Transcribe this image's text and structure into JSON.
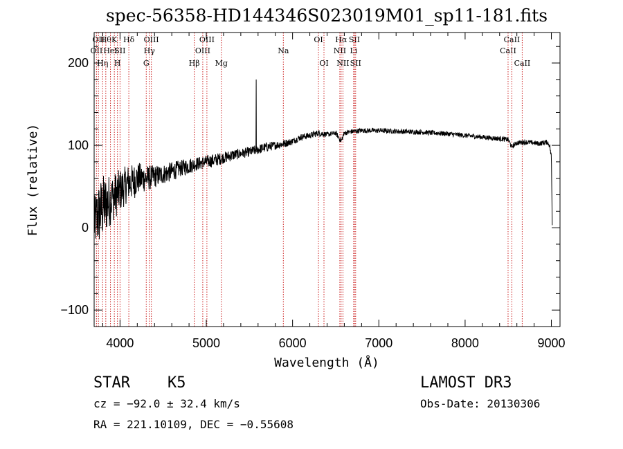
{
  "chart_data": {
    "type": "line",
    "title": "spec-56358-HD144346S023019M01_sp11-181.fits",
    "xlabel": "Wavelength (Å)",
    "ylabel": "Flux (relative)",
    "xlim": [
      3700,
      9100
    ],
    "ylim": [
      -120,
      237
    ],
    "xticks": [
      4000,
      5000,
      6000,
      7000,
      8000,
      9000
    ],
    "yticks": [
      -100,
      0,
      100,
      200
    ],
    "xtick_labels": [
      "4000",
      "5000",
      "6000",
      "7000",
      "8000",
      "9000"
    ],
    "ytick_labels": [
      "−100",
      "0",
      "100",
      "200"
    ],
    "spectrum_anchors": {
      "x": [
        3700,
        3720,
        3750,
        3800,
        3850,
        3900,
        3950,
        4000,
        4050,
        4100,
        4150,
        4200,
        4300,
        4400,
        4500,
        4600,
        4700,
        4800,
        4900,
        5000,
        5100,
        5200,
        5300,
        5400,
        5500,
        5600,
        5700,
        5800,
        5900,
        6000,
        6100,
        6200,
        6300,
        6400,
        6500,
        6563,
        6600,
        6700,
        6800,
        7000,
        7200,
        7500,
        7800,
        8000,
        8200,
        8400,
        8500,
        8540,
        8600,
        8700,
        8800,
        8850,
        8900,
        8950,
        8980,
        9000,
        9010
      ],
      "y": [
        5,
        10,
        15,
        25,
        30,
        35,
        40,
        45,
        50,
        55,
        55,
        60,
        60,
        62,
        65,
        68,
        72,
        75,
        78,
        80,
        82,
        85,
        88,
        90,
        92,
        95,
        98,
        100,
        102,
        105,
        110,
        112,
        115,
        113,
        115,
        105,
        115,
        117,
        118,
        118,
        117,
        116,
        114,
        112,
        110,
        108,
        107,
        98,
        103,
        104,
        103,
        102,
        103,
        104,
        100,
        85,
        5
      ],
      "noise": [
        30,
        35,
        40,
        40,
        35,
        30,
        28,
        26,
        24,
        22,
        22,
        20,
        16,
        14,
        12,
        12,
        10,
        10,
        8,
        8,
        8,
        7,
        7,
        6,
        6,
        6,
        6,
        5,
        5,
        4,
        4,
        4,
        4,
        3,
        3,
        3,
        3,
        3,
        3,
        3,
        3,
        3,
        3,
        3,
        3,
        3,
        3,
        3,
        3,
        3,
        3,
        3,
        3,
        3,
        3,
        5,
        5
      ]
    },
    "spikes": [
      {
        "x": 5577,
        "y": 180
      }
    ],
    "line_markers": [
      {
        "x": 3727,
        "row": 2,
        "label": "OII"
      },
      {
        "x": 3750,
        "row": 1,
        "label": "OII"
      },
      {
        "x": 3798,
        "row": 3,
        "label": "Hη"
      },
      {
        "x": 3835,
        "row": 1,
        "label": "Hθ"
      },
      {
        "x": 3889,
        "row": 2,
        "label": "HeI"
      },
      {
        "x": 3934,
        "row": 1,
        "label": "K"
      },
      {
        "x": 3970,
        "row": 3,
        "label": "H"
      },
      {
        "x": 4000,
        "row": 2,
        "label": "SII"
      },
      {
        "x": 4102,
        "row": 1,
        "label": "Hδ"
      },
      {
        "x": 4304,
        "row": 3,
        "label": "G"
      },
      {
        "x": 4340,
        "row": 2,
        "label": "Hγ"
      },
      {
        "x": 4363,
        "row": 1,
        "label": "OIII"
      },
      {
        "x": 4861,
        "row": 3,
        "label": "Hβ"
      },
      {
        "x": 4959,
        "row": 2,
        "label": "OIII"
      },
      {
        "x": 5007,
        "row": 1,
        "label": "OIII"
      },
      {
        "x": 5175,
        "row": 3,
        "label": "Mg"
      },
      {
        "x": 5893,
        "row": 2,
        "label": "Na"
      },
      {
        "x": 6300,
        "row": 1,
        "label": "OI"
      },
      {
        "x": 6364,
        "row": 3,
        "label": "OI"
      },
      {
        "x": 6548,
        "row": 2,
        "label": "NII"
      },
      {
        "x": 6563,
        "row": 1,
        "label": "Hα"
      },
      {
        "x": 6584,
        "row": 3,
        "label": "NII"
      },
      {
        "x": 6708,
        "row": 2,
        "label": "Li"
      },
      {
        "x": 6717,
        "row": 1,
        "label": "SII"
      },
      {
        "x": 6731,
        "row": 3,
        "label": "SII"
      },
      {
        "x": 8498,
        "row": 2,
        "label": "CaII"
      },
      {
        "x": 8542,
        "row": 1,
        "label": "CaII"
      },
      {
        "x": 8662,
        "row": 3,
        "label": "CaII"
      }
    ],
    "colors": {
      "spectrum": "#000000",
      "markers": "#cc2222",
      "axes": "#000000"
    }
  },
  "info": {
    "object_class": "STAR",
    "subclass": "K5",
    "survey": "LAMOST DR3",
    "redshift": "cz = −92.0 ± 32.4 km/s",
    "obs_date": "Obs-Date: 20130306",
    "coords": "RA = 221.10109, DEC =  −0.55608"
  }
}
